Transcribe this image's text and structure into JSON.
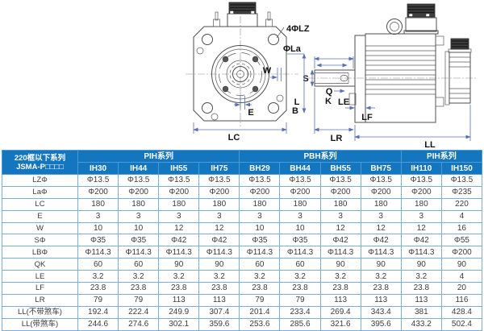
{
  "diagram": {
    "front_view_labels": {
      "holes": "4ΦLZ",
      "pilot": "ΦLa",
      "keyway_width": "W",
      "shaft_offset": "E",
      "flange_width": "LC"
    },
    "side_view_labels": {
      "shaft_dia": "S",
      "key_len": "Q",
      "key_k": "K",
      "l": "L",
      "b": "B",
      "le": "LE",
      "lf": "LF",
      "shaft_len": "LR",
      "body_len": "LL"
    }
  },
  "table": {
    "model_title_line1": "220框以下系列",
    "model_title_line2": "JSMA-P□□□□",
    "groups": [
      {
        "label": "PIH系列",
        "span": 4
      },
      {
        "label": "PBH系列",
        "span": 4
      },
      {
        "label": "PIH系列",
        "span": 2
      }
    ],
    "columns": [
      "IH30",
      "IH44",
      "IH55",
      "IH75",
      "BH29",
      "BH44",
      "BH55",
      "BH75",
      "IH110",
      "IH150"
    ],
    "rows": [
      {
        "label": "LZΦ",
        "values": [
          "Φ13.5",
          "Φ13.5",
          "Φ13.5",
          "Φ13.5",
          "Φ13.5",
          "Φ13.5",
          "Φ13.5",
          "Φ13.5",
          "Φ13.5",
          "Φ13.5"
        ]
      },
      {
        "label": "LaΦ",
        "values": [
          "Φ200",
          "Φ200",
          "Φ200",
          "Φ200",
          "Φ200",
          "Φ200",
          "Φ200",
          "Φ200",
          "Φ200",
          "Φ235"
        ]
      },
      {
        "label": "LC",
        "values": [
          "180",
          "180",
          "180",
          "180",
          "180",
          "180",
          "180",
          "180",
          "180",
          "220"
        ]
      },
      {
        "label": "E",
        "values": [
          "3",
          "3",
          "3",
          "3",
          "3",
          "3",
          "3",
          "3",
          "3",
          "4"
        ]
      },
      {
        "label": "W",
        "values": [
          "10",
          "10",
          "12",
          "12",
          "10",
          "10",
          "12",
          "12",
          "12",
          "16"
        ]
      },
      {
        "label": "SΦ",
        "values": [
          "Φ35",
          "Φ35",
          "Φ42",
          "Φ42",
          "Φ35",
          "Φ35",
          "Φ42",
          "Φ42",
          "Φ42",
          "Φ55"
        ]
      },
      {
        "label": "LBΦ",
        "values": [
          "Φ114.3",
          "Φ114.3",
          "Φ114.3",
          "Φ114.3",
          "Φ114.3",
          "Φ114.3",
          "Φ114.3",
          "Φ114.3",
          "Φ114.3",
          "Φ200"
        ]
      },
      {
        "label": "QK",
        "values": [
          "60",
          "60",
          "90",
          "90",
          "60",
          "60",
          "90",
          "90",
          "90",
          "90"
        ]
      },
      {
        "label": "LE",
        "values": [
          "3.2",
          "3.2",
          "3.2",
          "3.2",
          "3.2",
          "3.2",
          "3.2",
          "3.2",
          "3.2",
          "4"
        ]
      },
      {
        "label": "LF",
        "values": [
          "23.8",
          "23.8",
          "23.8",
          "23.8",
          "23.8",
          "23.8",
          "23.8",
          "23.8",
          "23.8",
          "20"
        ]
      },
      {
        "label": "LR",
        "values": [
          "79",
          "79",
          "113",
          "113",
          "79",
          "79",
          "113",
          "113",
          "113",
          "116"
        ]
      },
      {
        "label": "LL(不带煞车)",
        "values": [
          "192.4",
          "222.4",
          "249.9",
          "307.4",
          "201.4",
          "233.4",
          "269.4",
          "343.4",
          "381",
          "428.4"
        ]
      },
      {
        "label": "LL(带煞车)",
        "values": [
          "244.6",
          "274.6",
          "302.1",
          "359.6",
          "253.6",
          "285.6",
          "321.6",
          "395.6",
          "433.2",
          "502.4"
        ]
      }
    ]
  },
  "colors": {
    "header_bg": "#1476be",
    "header_text": "#ffffff",
    "table_border": "#79aed8",
    "body_text": "#3c3c3c",
    "dimension_line": "#5b6faf",
    "part_outline": "#4d4d4d"
  }
}
